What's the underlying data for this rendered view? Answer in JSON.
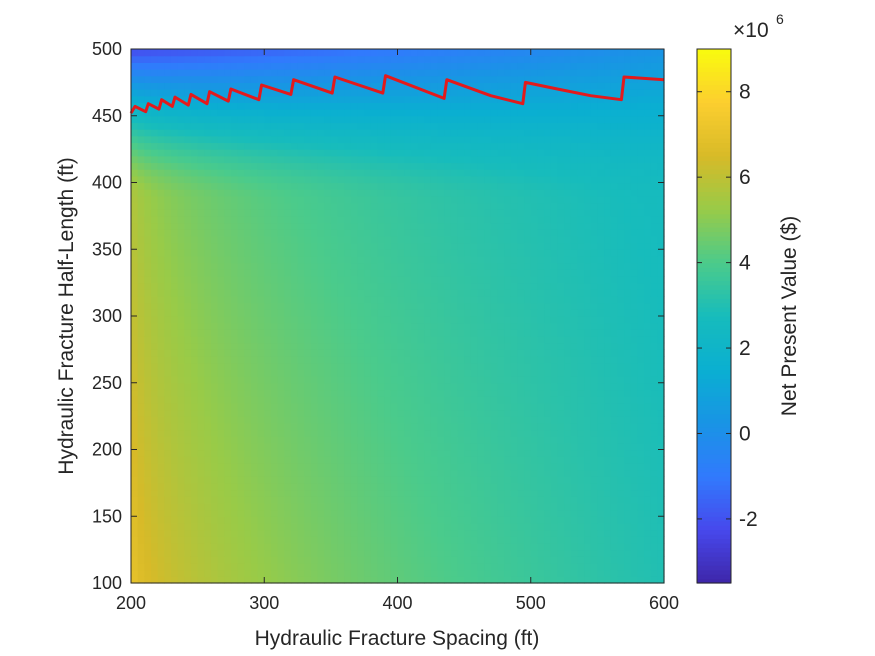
{
  "chart_data": {
    "type": "heatmap",
    "xlabel": "Hydraulic Fracture Spacing (ft)",
    "ylabel": "Hydraulic Fracture Half-Length (ft)",
    "xlim": [
      200,
      600
    ],
    "ylim": [
      100,
      500
    ],
    "xticks": [
      200,
      300,
      400,
      500,
      600
    ],
    "yticks": [
      100,
      150,
      200,
      250,
      300,
      350,
      400,
      450,
      500
    ],
    "colorbar": {
      "label": "Net Present Value ($)",
      "exponent_label": "×10",
      "exponent": "6",
      "range": [
        -3.5,
        9.0
      ],
      "ticks": [
        -2,
        0,
        2,
        4,
        6,
        8
      ],
      "colormap": "parula"
    },
    "surface_description_values": {
      "npv_at_spacing_200_halflength_100": 7.2,
      "npv_at_spacing_600_halflength_100": 3.0,
      "npv_at_spacing_400_halflength_350": 2.3,
      "npv_at_spacing_200_halflength_500": -2.2,
      "npv_at_spacing_600_halflength_500": 0.2
    },
    "series": [
      {
        "type": "line",
        "color": "#e31a1c",
        "points": [
          [
            200,
            452
          ],
          [
            203,
            457
          ],
          [
            211,
            453
          ],
          [
            213,
            459
          ],
          [
            221,
            455
          ],
          [
            223,
            462
          ],
          [
            231,
            457
          ],
          [
            233,
            464
          ],
          [
            243,
            458
          ],
          [
            245,
            466
          ],
          [
            257,
            459
          ],
          [
            259,
            468
          ],
          [
            273,
            461
          ],
          [
            275,
            470
          ],
          [
            296,
            462
          ],
          [
            298,
            473
          ],
          [
            320,
            466
          ],
          [
            322,
            477
          ],
          [
            351,
            467
          ],
          [
            353,
            479
          ],
          [
            389,
            467
          ],
          [
            391,
            480
          ],
          [
            435,
            463
          ],
          [
            437,
            477
          ],
          [
            470,
            465
          ],
          [
            494,
            459
          ],
          [
            496,
            475
          ],
          [
            520,
            470
          ],
          [
            545,
            465
          ],
          [
            568,
            462
          ],
          [
            570,
            479
          ],
          [
            600,
            477
          ]
        ]
      }
    ]
  }
}
